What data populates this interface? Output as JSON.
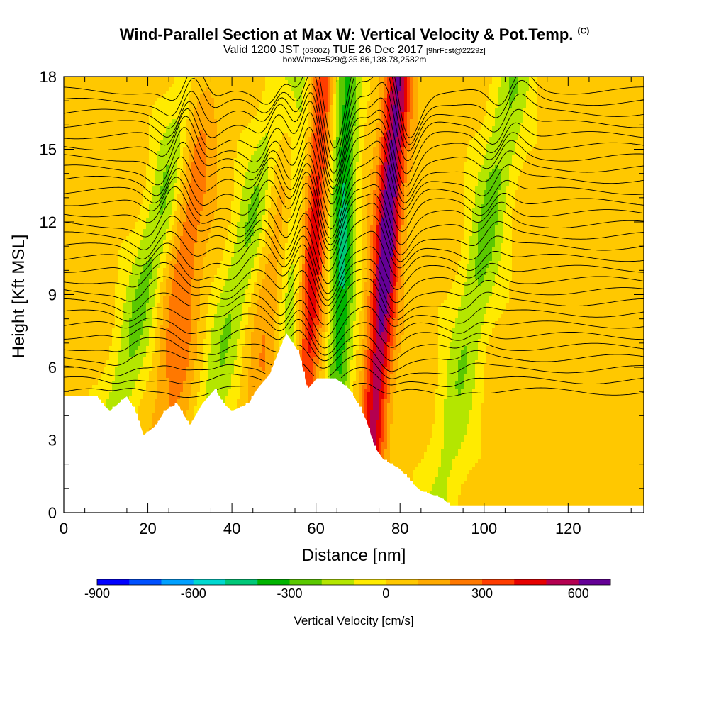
{
  "chart_data": {
    "type": "heatmap",
    "title": "Wind-Parallel Section at Max W: Vertical Velocity & Pot.Temp.",
    "title_mark": "(C)",
    "subtitle_main": "Valid 1200 JST",
    "subtitle_utc": "(0300Z)",
    "subtitle_date": "TUE 26 Dec 2017",
    "subtitle_fcst": "[9hrFcst@2229z]",
    "subtitle2": "boxWmax=529@35.86,138.78,2582m",
    "xlabel": "Distance [nm]",
    "ylabel": "Height [Kft MSL]",
    "xlim": [
      0,
      138
    ],
    "ylim": [
      0,
      18
    ],
    "x_ticks": [
      0,
      20,
      40,
      60,
      80,
      100,
      120
    ],
    "x_tick_labels": [
      "0",
      "20",
      "40",
      "60",
      "80",
      "100",
      "120"
    ],
    "y_ticks": [
      0,
      3,
      6,
      9,
      12,
      15,
      18
    ],
    "y_tick_labels": [
      "0",
      "3",
      "6",
      "9",
      "12",
      "15",
      "18"
    ],
    "grid": false,
    "colorbar": {
      "label": "Vertical Velocity [cm/s]",
      "min": -900,
      "max": 700,
      "tick_values": [
        -900,
        -600,
        -300,
        0,
        300,
        600
      ],
      "tick_labels": [
        "-900",
        "-600",
        "-300",
        "0",
        "300",
        "600"
      ],
      "colors": [
        "#0000ff",
        "#0050ff",
        "#00a0ff",
        "#00d8d0",
        "#00c878",
        "#00b400",
        "#5ac800",
        "#b4e600",
        "#ffeb00",
        "#ffc800",
        "#ffaa00",
        "#ff7800",
        "#ff3c00",
        "#e60000",
        "#b40050",
        "#640096"
      ]
    },
    "w_features": [
      {
        "x": 58.5,
        "sign": "up",
        "peak": 600,
        "tilt": 0.3
      },
      {
        "x": 66,
        "sign": "down",
        "peak": -450,
        "tilt": 0.15
      },
      {
        "x": 76,
        "sign": "up",
        "peak": 650,
        "tilt": 0.4
      },
      {
        "x": 55,
        "sign": "down",
        "peak": -350,
        "tilt": 0.4
      },
      {
        "x": 19,
        "sign": "down",
        "peak": -280,
        "tilt": 1.3
      },
      {
        "x": 41,
        "sign": "down",
        "peak": -260,
        "tilt": 1.3
      },
      {
        "x": 98,
        "sign": "down",
        "peak": -270,
        "tilt": 1.0
      },
      {
        "x": 28,
        "sign": "up",
        "peak": 250,
        "tilt": 0.5
      },
      {
        "x": 50,
        "sign": "up",
        "peak": 220,
        "tilt": 0.5
      }
    ],
    "terrain": [
      {
        "x": 0,
        "y": 4.8
      },
      {
        "x": 8,
        "y": 4.8
      },
      {
        "x": 9,
        "y": 4.5
      },
      {
        "x": 11,
        "y": 4.2
      },
      {
        "x": 13,
        "y": 4.5
      },
      {
        "x": 15,
        "y": 4.8
      },
      {
        "x": 17,
        "y": 4.2
      },
      {
        "x": 19,
        "y": 3.2
      },
      {
        "x": 22,
        "y": 3.6
      },
      {
        "x": 24,
        "y": 4.2
      },
      {
        "x": 27,
        "y": 4.5
      },
      {
        "x": 30,
        "y": 3.6
      },
      {
        "x": 33,
        "y": 4.5
      },
      {
        "x": 36,
        "y": 5.1
      },
      {
        "x": 38,
        "y": 4.5
      },
      {
        "x": 40,
        "y": 4.2
      },
      {
        "x": 44,
        "y": 4.5
      },
      {
        "x": 46,
        "y": 5.1
      },
      {
        "x": 49,
        "y": 5.7
      },
      {
        "x": 51,
        "y": 6.6
      },
      {
        "x": 53,
        "y": 7.4
      },
      {
        "x": 56,
        "y": 6.6
      },
      {
        "x": 58,
        "y": 5.1
      },
      {
        "x": 60,
        "y": 5.5
      },
      {
        "x": 65,
        "y": 5.5
      },
      {
        "x": 68,
        "y": 5.1
      },
      {
        "x": 70,
        "y": 4.5
      },
      {
        "x": 72,
        "y": 3.8
      },
      {
        "x": 74,
        "y": 2.7
      },
      {
        "x": 76,
        "y": 2.2
      },
      {
        "x": 80,
        "y": 1.8
      },
      {
        "x": 83,
        "y": 1.2
      },
      {
        "x": 85,
        "y": 0.9
      },
      {
        "x": 90,
        "y": 0.6
      },
      {
        "x": 92,
        "y": 0.3
      },
      {
        "x": 138,
        "y": 0.3
      }
    ],
    "theta_isentropes": {
      "count": 28,
      "lowest_height": 5.0,
      "spacing": 0.46
    }
  }
}
